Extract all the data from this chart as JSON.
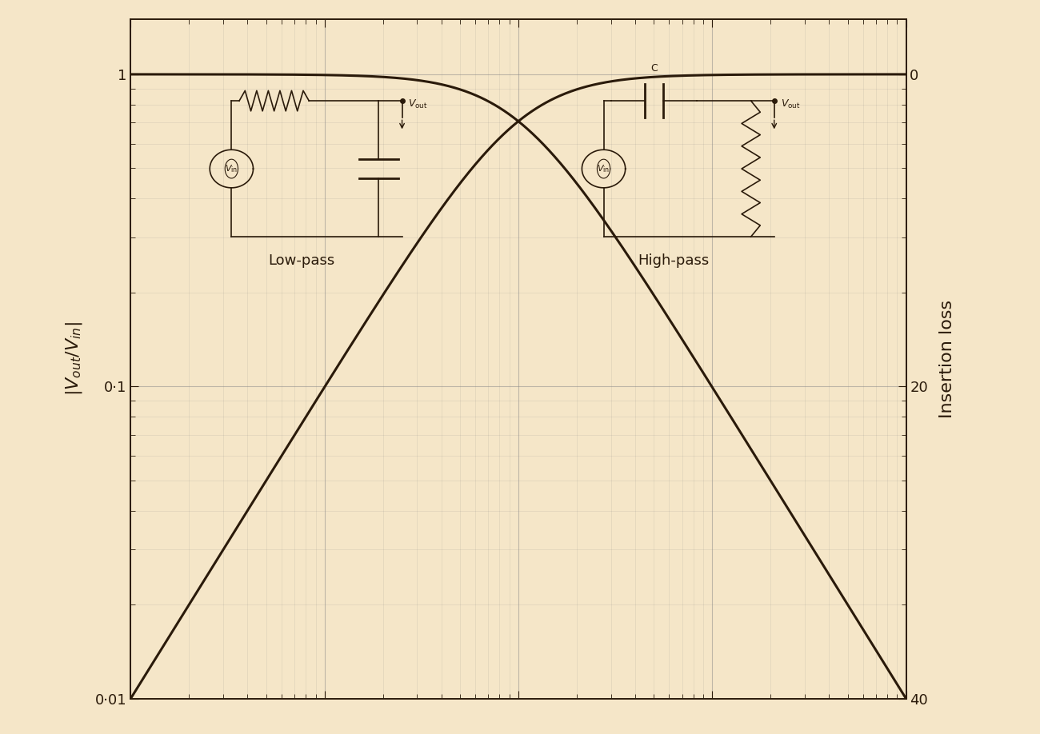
{
  "background_color": "#f5e6c8",
  "plot_area_color": "#f5e6c8",
  "line_color": "#2a1a0a",
  "line_width": 2.2,
  "ylim_log": [
    0.01,
    1.5
  ],
  "xlim_log": [
    0.01,
    100
  ],
  "ytick_labels_left": [
    "0·01",
    "0·1",
    "1"
  ],
  "ytick_labels_right": [
    "0",
    "20",
    "40"
  ],
  "grid_color": "#888888",
  "grid_alpha": 0.5,
  "annotation_lowpass": "Low-pass",
  "annotation_highpass": "High-pass",
  "tick_color": "#2a1a0a",
  "spine_color": "#2a1a0a",
  "font_size_labels": 14,
  "font_size_ticks": 13,
  "font_size_annotations": 13,
  "ylabel_left": "$|V_{out}/V_{in}|$",
  "ylabel_right": "Insertion loss",
  "dB_ticks": [
    0,
    20,
    40
  ]
}
